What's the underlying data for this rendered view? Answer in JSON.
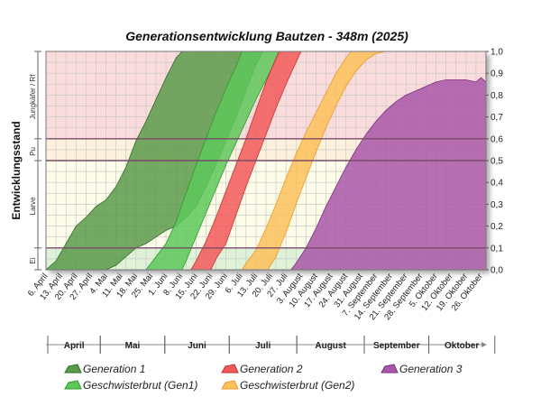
{
  "chart_data": {
    "type": "area",
    "title": "Generationsentwicklung Bautzen - 348m (2025)",
    "ylabel": "Entwicklungsstand",
    "ylim": [
      0,
      1
    ],
    "yticks": [
      "0,0",
      "0,1",
      "0,2",
      "0,3",
      "0,4",
      "0,5",
      "0,6",
      "0,7",
      "0,8",
      "0,9",
      "1,0"
    ],
    "grid": true,
    "x_categories": [
      "6. April",
      "13. April",
      "20. April",
      "27. April",
      "4. Mai",
      "11. Mai",
      "18. Mai",
      "25. Mai",
      "1. Juni",
      "8. Juni",
      "15. Juni",
      "22. Juni",
      "29. Juni",
      "6. Juli",
      "13. Juli",
      "20. Juli",
      "27. Juli",
      "3. August",
      "10. August",
      "17. August",
      "24. August",
      "31. August",
      "7. September",
      "14. September",
      "21. September",
      "28. September",
      "5. Oktober",
      "12. Oktober",
      "19. Oktober",
      "26. Oktober"
    ],
    "months": [
      {
        "label": "April",
        "from": 0,
        "to": 3.5
      },
      {
        "label": "Mai",
        "from": 3.5,
        "to": 7.8
      },
      {
        "label": "Juni",
        "from": 7.8,
        "to": 12.1
      },
      {
        "label": "Juli",
        "from": 12.1,
        "to": 16.6
      },
      {
        "label": "August",
        "from": 16.6,
        "to": 21.1
      },
      {
        "label": "September",
        "from": 21.1,
        "to": 25.4
      },
      {
        "label": "Oktober",
        "from": 25.4,
        "to": 29.8
      }
    ],
    "stages": [
      {
        "label": "Ei",
        "from": 0,
        "to": 0.1,
        "color": "#dff2d8"
      },
      {
        "label": "Larve",
        "from": 0.1,
        "to": 0.5,
        "color": "#fcfce8"
      },
      {
        "label": "Pu",
        "from": 0.5,
        "to": 0.6,
        "color": "#fdf0dc"
      },
      {
        "label": "Jungkäfer / Rf",
        "from": 0.6,
        "to": 1.0,
        "color": "#fbdcdc"
      }
    ],
    "series": [
      {
        "name": "Generation 1",
        "color": "#5a9a4a",
        "edge": "#2f6e2a",
        "lower": [
          [
            6,
            0
          ],
          [
            7,
            0.02
          ],
          [
            8,
            0.06
          ],
          [
            9,
            0.1
          ],
          [
            10,
            0.12
          ],
          [
            11,
            0.15
          ],
          [
            12,
            0.18
          ],
          [
            13,
            0.2
          ],
          [
            14,
            0.24
          ],
          [
            15,
            0.29
          ],
          [
            16,
            0.38
          ],
          [
            17,
            0.48
          ],
          [
            18,
            0.59
          ],
          [
            19,
            0.7
          ],
          [
            20,
            0.82
          ],
          [
            21,
            0.94
          ],
          [
            21.7,
            1
          ]
        ],
        "upper": [
          [
            0,
            0
          ],
          [
            1,
            0.04
          ],
          [
            2,
            0.12
          ],
          [
            3,
            0.2
          ],
          [
            4,
            0.24
          ],
          [
            5,
            0.29
          ],
          [
            6,
            0.32
          ],
          [
            7,
            0.38
          ],
          [
            8,
            0.47
          ],
          [
            9,
            0.59
          ],
          [
            10,
            0.68
          ],
          [
            11,
            0.78
          ],
          [
            12,
            0.88
          ],
          [
            13,
            0.97
          ],
          [
            13.6,
            1
          ]
        ]
      },
      {
        "name": "Geschwisterbrut (Gen1)",
        "color": "#5ec85a",
        "edge": "#2f9a2e",
        "lower": [
          [
            10,
            0
          ],
          [
            11,
            0.06
          ],
          [
            12,
            0.12
          ],
          [
            13,
            0.22
          ],
          [
            14,
            0.35
          ],
          [
            15,
            0.48
          ],
          [
            16,
            0.6
          ],
          [
            17,
            0.72
          ],
          [
            18,
            0.83
          ],
          [
            19,
            0.93
          ],
          [
            19.6,
            1
          ]
        ],
        "upper": [
          [
            13.6,
            0
          ],
          [
            14,
            0.04
          ],
          [
            15,
            0.15
          ],
          [
            16,
            0.26
          ],
          [
            17,
            0.37
          ],
          [
            18,
            0.48
          ],
          [
            19,
            0.58
          ],
          [
            20,
            0.68
          ],
          [
            21,
            0.78
          ],
          [
            22,
            0.87
          ],
          [
            23,
            0.96
          ],
          [
            23.5,
            1
          ]
        ]
      },
      {
        "name": "Generation 2",
        "color": "#f25a5a",
        "edge": "#c43030",
        "lower": [
          [
            14.5,
            0
          ],
          [
            15,
            0.04
          ],
          [
            16,
            0.13
          ],
          [
            17,
            0.24
          ],
          [
            18,
            0.36
          ],
          [
            19,
            0.48
          ],
          [
            20,
            0.6
          ],
          [
            21,
            0.73
          ],
          [
            22,
            0.86
          ],
          [
            23,
            0.97
          ],
          [
            23.3,
            1
          ]
        ],
        "upper": [
          [
            16.5,
            0
          ],
          [
            17,
            0.05
          ],
          [
            18,
            0.12
          ],
          [
            19,
            0.25
          ],
          [
            20,
            0.38
          ],
          [
            21,
            0.5
          ],
          [
            22,
            0.62
          ],
          [
            23,
            0.74
          ],
          [
            24,
            0.85
          ],
          [
            25,
            0.95
          ],
          [
            25.5,
            1
          ]
        ]
      },
      {
        "name": "Geschwisterbrut (Gen2)",
        "color": "#fcc15a",
        "edge": "#e89a2a",
        "lower": [
          [
            19.6,
            0
          ],
          [
            20,
            0.03
          ],
          [
            21,
            0.09
          ],
          [
            22,
            0.19
          ],
          [
            23,
            0.3
          ],
          [
            24,
            0.42
          ],
          [
            25,
            0.53
          ],
          [
            26,
            0.63
          ],
          [
            27,
            0.72
          ],
          [
            28,
            0.81
          ],
          [
            29,
            0.9
          ],
          [
            30,
            0.97
          ],
          [
            30.5,
            1
          ]
        ],
        "upper": [
          [
            22.2,
            0
          ],
          [
            23,
            0.06
          ],
          [
            24,
            0.17
          ],
          [
            25,
            0.3
          ],
          [
            26,
            0.42
          ],
          [
            27,
            0.54
          ],
          [
            28,
            0.65
          ],
          [
            29,
            0.75
          ],
          [
            30,
            0.84
          ],
          [
            31,
            0.91
          ],
          [
            32,
            0.96
          ],
          [
            33,
            0.99
          ],
          [
            34,
            1
          ]
        ]
      },
      {
        "name": "Generation 3",
        "color": "#a957a8",
        "edge": "#7a2f7a",
        "lower": [
          [
            24.5,
            0
          ],
          [
            25,
            0.03
          ],
          [
            26,
            0.1
          ],
          [
            27,
            0.19
          ],
          [
            28,
            0.29
          ],
          [
            29,
            0.38
          ],
          [
            30,
            0.47
          ],
          [
            31,
            0.55
          ],
          [
            32,
            0.62
          ],
          [
            33,
            0.68
          ],
          [
            34,
            0.73
          ],
          [
            35,
            0.77
          ],
          [
            36,
            0.8
          ],
          [
            37,
            0.82
          ],
          [
            38,
            0.84
          ],
          [
            39,
            0.86
          ],
          [
            40,
            0.87
          ],
          [
            41,
            0.87
          ],
          [
            42,
            0.87
          ],
          [
            43,
            0.86
          ],
          [
            43.5,
            0.88
          ],
          [
            44,
            0.86
          ]
        ]
      }
    ]
  }
}
